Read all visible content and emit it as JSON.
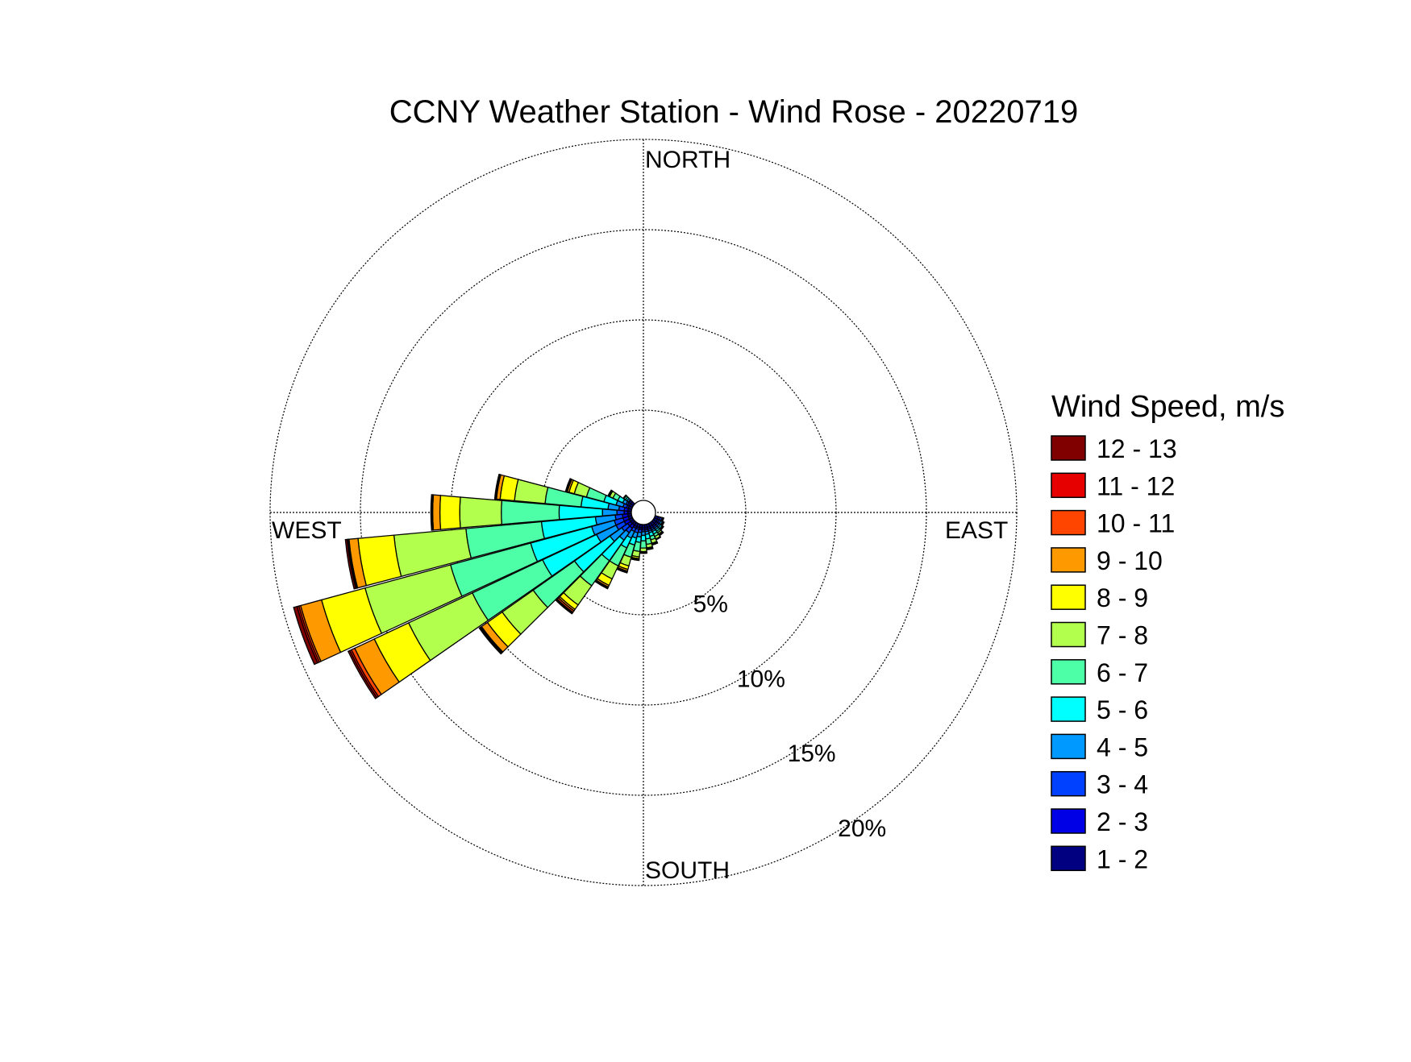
{
  "chart_data": {
    "type": "windrose",
    "title": "CCNY Weather Station - Wind Rose - 20220719",
    "directions": {
      "north": "NORTH",
      "south": "SOUTH",
      "east": "EAST",
      "west": "WEST"
    },
    "radial_ticks": [
      {
        "value": 5,
        "label": "5%"
      },
      {
        "value": 10,
        "label": "10%"
      },
      {
        "value": 15,
        "label": "15%"
      },
      {
        "value": 20,
        "label": "20%"
      }
    ],
    "rmax": 20,
    "sector_width_deg": 10,
    "legend": {
      "title": "Wind Speed, m/s",
      "bins": [
        {
          "label": "12 - 13",
          "color": "#800000"
        },
        {
          "label": "11 - 12",
          "color": "#e60000"
        },
        {
          "label": "10 - 11",
          "color": "#ff4500"
        },
        {
          "label": "9 - 10",
          "color": "#ff9900"
        },
        {
          "label": "8 - 9",
          "color": "#ffff00"
        },
        {
          "label": "7 - 8",
          "color": "#b3ff4d"
        },
        {
          "label": "6 - 7",
          "color": "#4dffa6"
        },
        {
          "label": "5 - 6",
          "color": "#00ffff"
        },
        {
          "label": "4 - 5",
          "color": "#0099ff"
        },
        {
          "label": "3 - 4",
          "color": "#0040ff"
        },
        {
          "label": "2 - 3",
          "color": "#0000e6"
        },
        {
          "label": "1 - 2",
          "color": "#000080"
        }
      ]
    },
    "bin_order_inner_to_outer": [
      "1 - 2",
      "2 - 3",
      "3 - 4",
      "4 - 5",
      "5 - 6",
      "6 - 7",
      "7 - 8",
      "8 - 9",
      "9 - 10",
      "10 - 11",
      "11 - 12",
      "12 - 13"
    ],
    "sectors": [
      {
        "direction_deg": 280,
        "cumulative_pct": [
          0.2,
          0.4,
          0.7,
          1.3,
          2.8,
          4.8,
          6.5,
          7.3,
          7.5,
          7.5,
          7.55,
          7.6
        ]
      },
      {
        "direction_deg": 270,
        "cumulative_pct": [
          0.2,
          0.4,
          0.8,
          1.6,
          4.0,
          7.2,
          9.5,
          10.6,
          11.0,
          11.0,
          11.05,
          11.1
        ]
      },
      {
        "direction_deg": 260,
        "cumulative_pct": [
          0.2,
          0.5,
          0.9,
          2.0,
          5.0,
          9.2,
          13.2,
          15.2,
          15.7,
          15.75,
          15.8,
          15.9
        ]
      },
      {
        "direction_deg": 250,
        "cumulative_pct": [
          0.2,
          0.5,
          1.0,
          2.3,
          5.8,
          10.4,
          15.3,
          17.8,
          19.0,
          19.1,
          19.2,
          19.4
        ]
      },
      {
        "direction_deg": 240,
        "cumulative_pct": [
          0.2,
          0.5,
          1.0,
          2.2,
          5.5,
          9.8,
          13.7,
          15.8,
          17.0,
          17.2,
          17.3,
          17.4
        ]
      },
      {
        "direction_deg": 230,
        "cumulative_pct": [
          0.2,
          0.4,
          0.8,
          1.6,
          4.0,
          6.8,
          8.9,
          9.9,
          10.3,
          10.35,
          10.4,
          10.45
        ]
      },
      {
        "direction_deg": 220,
        "cumulative_pct": [
          0.2,
          0.4,
          0.7,
          1.2,
          2.6,
          4.3,
          5.6,
          5.9,
          6.0,
          6.1,
          6.15,
          6.2
        ]
      },
      {
        "direction_deg": 210,
        "cumulative_pct": [
          0.2,
          0.3,
          0.5,
          0.9,
          1.5,
          2.6,
          3.4,
          3.8,
          3.9,
          3.9,
          3.95,
          4.0
        ]
      },
      {
        "direction_deg": 200,
        "cumulative_pct": [
          0.2,
          0.3,
          0.5,
          0.8,
          1.2,
          1.9,
          2.4,
          2.6,
          2.7,
          2.7,
          2.75,
          2.8
        ]
      },
      {
        "direction_deg": 190,
        "cumulative_pct": [
          0.2,
          0.3,
          0.45,
          0.7,
          1.0,
          1.5,
          1.8,
          1.9,
          1.9,
          1.9,
          1.95,
          2.0
        ]
      },
      {
        "direction_deg": 180,
        "cumulative_pct": [
          0.2,
          0.3,
          0.4,
          0.6,
          0.9,
          1.3,
          1.5,
          1.55,
          1.6,
          1.6,
          1.6,
          1.6
        ]
      },
      {
        "direction_deg": 170,
        "cumulative_pct": [
          0.2,
          0.3,
          0.4,
          0.55,
          0.8,
          1.1,
          1.3,
          1.35,
          1.4,
          1.4,
          1.4,
          1.4
        ]
      },
      {
        "direction_deg": 160,
        "cumulative_pct": [
          0.2,
          0.3,
          0.4,
          0.5,
          0.7,
          0.9,
          1.1,
          1.15,
          1.2,
          1.2,
          1.2,
          1.2
        ]
      },
      {
        "direction_deg": 150,
        "cumulative_pct": [
          0.2,
          0.3,
          0.4,
          0.5,
          0.65,
          0.8,
          0.95,
          1.0,
          1.0,
          1.0,
          1.0,
          1.0
        ]
      },
      {
        "direction_deg": 140,
        "cumulative_pct": [
          0.2,
          0.3,
          0.4,
          0.5,
          0.6,
          0.7,
          0.8,
          0.85,
          0.9,
          0.9,
          0.9,
          0.9
        ]
      },
      {
        "direction_deg": 130,
        "cumulative_pct": [
          0.2,
          0.3,
          0.4,
          0.5,
          0.6,
          0.65,
          0.7,
          0.7,
          0.7,
          0.7,
          0.7,
          0.7
        ]
      },
      {
        "direction_deg": 120,
        "cumulative_pct": [
          0.2,
          0.3,
          0.4,
          0.5,
          0.55,
          0.6,
          0.6,
          0.6,
          0.6,
          0.6,
          0.6,
          0.6
        ]
      },
      {
        "direction_deg": 110,
        "cumulative_pct": [
          0.2,
          0.3,
          0.4,
          0.45,
          0.5,
          0.5,
          0.5,
          0.5,
          0.5,
          0.5,
          0.5,
          0.5
        ]
      },
      {
        "direction_deg": 290,
        "cumulative_pct": [
          0.2,
          0.3,
          0.5,
          0.9,
          1.6,
          2.6,
          3.3,
          3.6,
          3.7,
          3.7,
          3.75,
          3.8
        ]
      },
      {
        "direction_deg": 300,
        "cumulative_pct": [
          0.2,
          0.3,
          0.4,
          0.6,
          0.9,
          1.2,
          1.4,
          1.45,
          1.5,
          1.5,
          1.5,
          1.5
        ]
      },
      {
        "direction_deg": 310,
        "cumulative_pct": [
          0.2,
          0.3,
          0.35,
          0.45,
          0.55,
          0.65,
          0.7,
          0.7,
          0.7,
          0.7,
          0.7,
          0.7
        ]
      }
    ]
  }
}
